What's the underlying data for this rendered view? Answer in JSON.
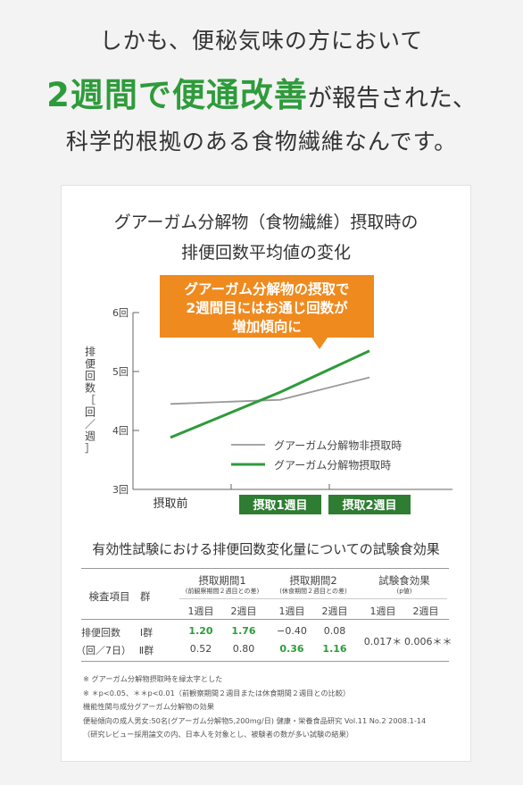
{
  "headline": {
    "line1": "しかも、便秘気味の方において",
    "line2_emph": "2週間で便通改善",
    "line2_rest": "が報告された、",
    "line3": "科学的根拠のある食物繊維なんです。"
  },
  "callout": {
    "lines": [
      "グアーガム分解物の摂取で",
      "2週間目にはお通じ回数が",
      "増加傾向に"
    ]
  },
  "chart_data": {
    "type": "line",
    "title": [
      "グアーガム分解物（食物繊維）摂取時の",
      "排便回数平均値の変化"
    ],
    "ylabel": "排便回数［回／週］",
    "ylim": [
      3,
      6
    ],
    "yticks": [
      "3回",
      "4回",
      "5回",
      "6回"
    ],
    "categories": [
      "摂取前",
      "摂取1週目",
      "摂取2週目"
    ],
    "series": [
      {
        "name": "グアーガム分解物非摂取時",
        "color": "#999999",
        "x": [
          0,
          1,
          2
        ],
        "values": [
          4.45,
          4.52,
          4.9
        ]
      },
      {
        "name": "グアーガム分解物摂取時",
        "color": "#2e9b3b",
        "x": [
          0,
          1,
          2
        ],
        "values": [
          3.88,
          4.65,
          5.35
        ]
      }
    ],
    "legend_position": "lower-right",
    "grid": false
  },
  "table": {
    "title": "有効性試験における排便回数変化量についての試験食効果",
    "col_item": "検査項目",
    "col_group": "群",
    "period1": "摂取期間1",
    "period1_note": "(前観察期間２週目との差)",
    "period2": "摂取期間2",
    "period2_note": "(休食期間２週目との差)",
    "effect": "試験食効果",
    "effect_note": "(p値)",
    "w1": "1週目",
    "w2": "2週目",
    "row_item1": "排便回数",
    "row_item2": "（回／7日）",
    "rows": [
      {
        "group": "Ⅰ群",
        "p1w1": "1.20",
        "p1w2": "1.76",
        "p2w1": "−0.40",
        "p2w2": "0.08"
      },
      {
        "group": "Ⅱ群",
        "p1w1": "0.52",
        "p1w2": "0.80",
        "p2w1": "0.36",
        "p2w2": "1.16"
      }
    ],
    "eff_w1": "0.017＊",
    "eff_w2": "0.006＊＊"
  },
  "notes": [
    "※ グアーガム分解物摂取時を緑太字とした",
    "※ ＊p<0.05、＊＊p<0.01（前観察期間２週目または休食期間２週目との比較）",
    "機能性関与成分グアーガム分解物の効果",
    "便秘傾向の成人男女:50名(グアーガム分解物5,200mg/日) 健康・栄養食品研究 Vol.11 No.2  2008.1-14",
    "（研究レビュー採用論文の内、日本人を対象とし、被験者の数が多い試験の結果）"
  ]
}
